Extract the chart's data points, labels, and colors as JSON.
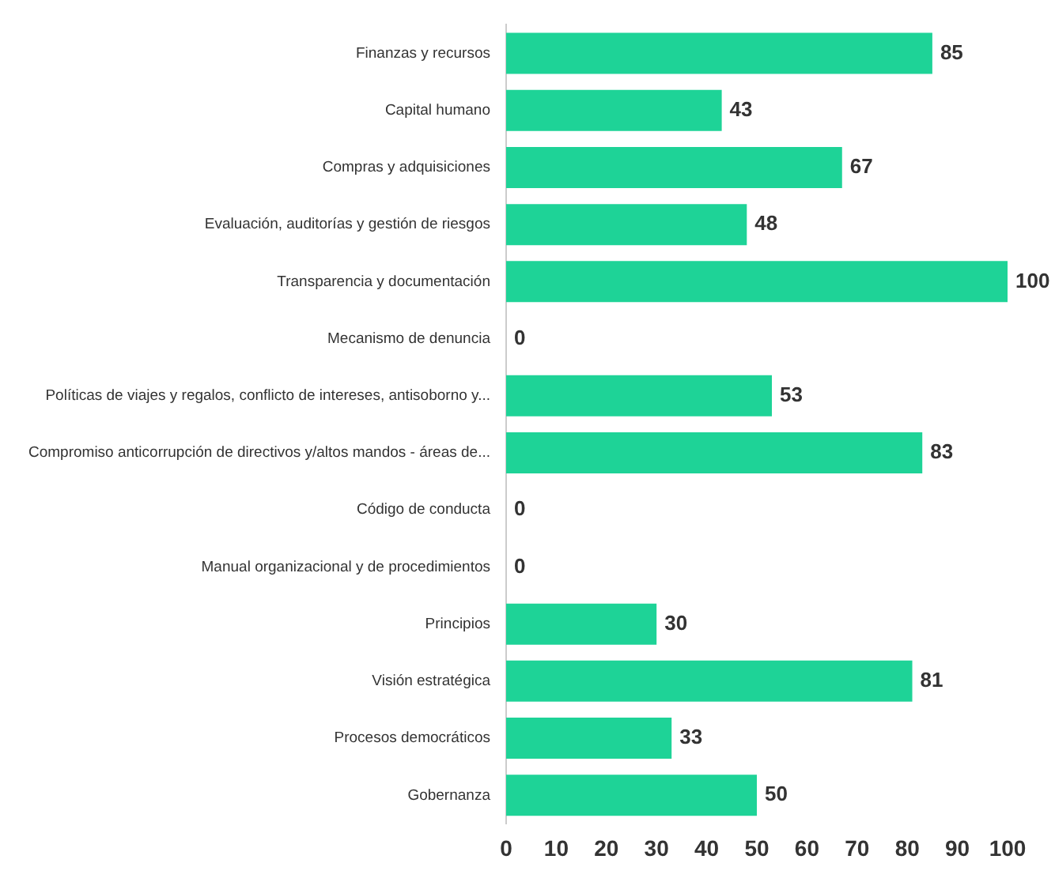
{
  "chart_data": {
    "type": "bar",
    "orientation": "horizontal",
    "categories": [
      "Finanzas y recursos",
      "Capital humano",
      "Compras y adquisiciones",
      "Evaluación, auditorías y gestión de riesgos",
      "Transparencia y documentación",
      "Mecanismo de denuncia",
      "Políticas de viajes y regalos, conflicto de intereses, antisoborno y...",
      "Compromiso anticorrupción de directivos y/altos mandos - áreas de...",
      "Código de conducta",
      "Manual organizacional y de procedimientos",
      "Principios",
      "Visión estratégica",
      "Procesos democráticos",
      "Gobernanza"
    ],
    "values": [
      85,
      43,
      67,
      48,
      100,
      0,
      53,
      83,
      0,
      0,
      30,
      81,
      33,
      50
    ],
    "color": "#1ed397",
    "xlim": [
      0,
      100
    ],
    "xticks": [
      0,
      10,
      20,
      30,
      40,
      50,
      60,
      70,
      80,
      90,
      100
    ],
    "data_labels": true,
    "grid": false,
    "legend": false
  }
}
